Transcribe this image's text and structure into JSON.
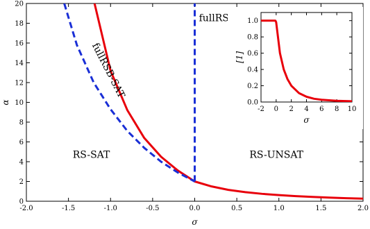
{
  "chart_data": [
    {
      "type": "line",
      "xlabel": "σ",
      "ylabel": "α",
      "xlim": [
        -2.0,
        2.0
      ],
      "ylim": [
        0,
        20
      ],
      "xticks": [
        "-2.0",
        "-1.5",
        "-1.0",
        "-0.5",
        "0.0",
        "0.5",
        "1.0",
        "1.5",
        "2.0"
      ],
      "yticks": [
        "0",
        "2",
        "4",
        "6",
        "8",
        "10",
        "12",
        "14",
        "16",
        "18",
        "20"
      ],
      "grid": false,
      "series": [
        {
          "style": "solid",
          "color": "#e8000b",
          "x": [
            -1.19,
            -1.0,
            -0.8,
            -0.6,
            -0.4,
            -0.2,
            0.0,
            0.2,
            0.4,
            0.6,
            0.8,
            1.0,
            1.2,
            1.4,
            1.6,
            1.8,
            2.0
          ],
          "y": [
            20.0,
            13.2,
            9.2,
            6.4,
            4.5,
            3.1,
            2.0,
            1.5,
            1.15,
            0.92,
            0.75,
            0.62,
            0.52,
            0.44,
            0.37,
            0.31,
            0.26
          ]
        },
        {
          "style": "dashed",
          "color": "#1a2fd6",
          "x": [
            -1.55,
            -1.4,
            -1.2,
            -1.0,
            -0.8,
            -0.6,
            -0.4,
            -0.2,
            0.0
          ],
          "y": [
            20.0,
            15.8,
            12.0,
            9.3,
            7.1,
            5.4,
            4.0,
            2.9,
            2.0
          ]
        },
        {
          "style": "dashed",
          "color": "#1a2fd6",
          "x": [
            0.0,
            0.0
          ],
          "y": [
            2.0,
            20.0
          ]
        }
      ],
      "annotations": [
        {
          "text": "fullRSB-UNSAT",
          "x": 0.05,
          "y": 18.2
        },
        {
          "text": "fullRSB-SAT",
          "x": -1.22,
          "y": 15.8,
          "rotation": 63
        },
        {
          "text": "RS-SAT",
          "x": -1.45,
          "y": 4.4
        },
        {
          "text": "RS-UNSAT",
          "x": 0.65,
          "y": 4.4
        }
      ]
    },
    {
      "type": "line",
      "xlabel": "σ",
      "ylabel": "[1]",
      "xlim": [
        -2,
        10
      ],
      "ylim": [
        0,
        1.1
      ],
      "xticks": [
        "-2",
        "0",
        "2",
        "4",
        "6",
        "8",
        "10"
      ],
      "yticks": [
        "0.0",
        "0.2",
        "0.4",
        "0.6",
        "0.8",
        "1.0"
      ],
      "grid": false,
      "series": [
        {
          "style": "solid",
          "color": "#e8000b",
          "x": [
            -2,
            -0.1,
            0.0,
            0.5,
            1.0,
            1.5,
            2.0,
            3.0,
            4.0,
            5.0,
            6.0,
            8.0,
            10.0
          ],
          "y": [
            1.0,
            1.0,
            0.98,
            0.6,
            0.4,
            0.28,
            0.2,
            0.11,
            0.065,
            0.04,
            0.028,
            0.015,
            0.01
          ]
        }
      ]
    }
  ]
}
